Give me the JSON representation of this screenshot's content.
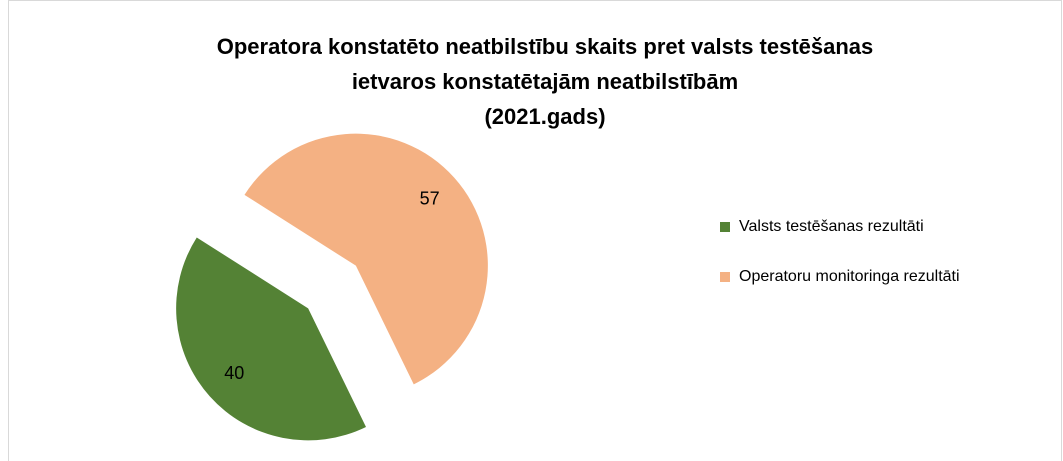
{
  "chart_data": {
    "type": "pie",
    "title": [
      "Operatora konstatēto neatbilstību skaits pret valsts testēšanas",
      "ietvaros  konstatētajām neatbilstībām",
      "(2021.gads)"
    ],
    "categories": [
      "Valsts testēšanas rezultāti",
      "Operatoru monitoringa rezultāti"
    ],
    "values": [
      40,
      57
    ],
    "colors": [
      "#548235",
      "#f4b183"
    ],
    "legend": "right"
  }
}
